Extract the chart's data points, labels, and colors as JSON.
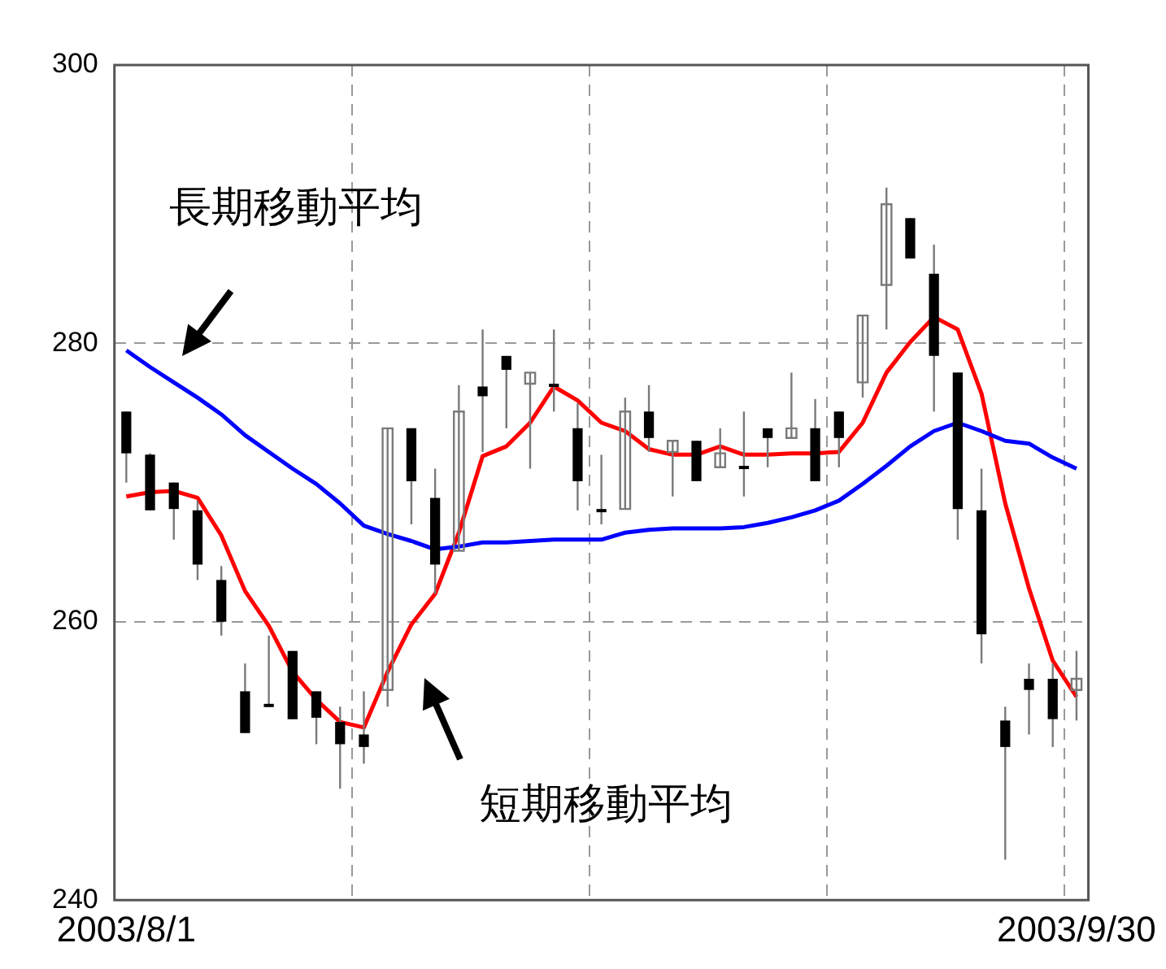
{
  "chart_data": {
    "type": "candlestick",
    "categories": [
      "2003/8/1",
      null,
      null,
      null,
      null,
      null,
      null,
      null,
      null,
      null,
      null,
      null,
      null,
      null,
      null,
      null,
      null,
      null,
      null,
      null,
      null,
      null,
      null,
      null,
      null,
      null,
      null,
      null,
      null,
      null,
      null,
      null,
      null,
      null,
      null,
      null,
      null,
      null,
      null,
      null,
      "2003/9/30"
    ],
    "ohlc": [
      [
        275.1,
        275.1,
        270.0,
        272.1
      ],
      [
        272.0,
        272.1,
        268.0,
        268.0
      ],
      [
        270.0,
        270.0,
        265.9,
        268.1
      ],
      [
        268.0,
        268.7,
        263.0,
        264.1
      ],
      [
        263.0,
        264.0,
        259.0,
        260.0
      ],
      [
        255.0,
        257.0,
        252.0,
        252.0
      ],
      [
        254.1,
        259.0,
        253.9,
        253.9
      ],
      [
        257.9,
        257.9,
        253.0,
        253.0
      ],
      [
        255.0,
        255.0,
        251.2,
        253.1
      ],
      [
        252.8,
        253.9,
        248.0,
        251.2
      ],
      [
        251.9,
        255.0,
        249.8,
        251.0
      ],
      [
        255.1,
        273.9,
        253.9,
        273.9
      ],
      [
        273.9,
        273.9,
        267.0,
        270.1
      ],
      [
        268.9,
        271.0,
        262.0,
        264.1
      ],
      [
        265.1,
        277.0,
        265.1,
        275.1
      ],
      [
        276.9,
        281.0,
        272.2,
        276.2
      ],
      [
        279.1,
        279.1,
        273.9,
        278.1
      ],
      [
        277.1,
        277.9,
        271.0,
        277.9
      ],
      [
        277.1,
        281.0,
        275.1,
        277.0
      ],
      [
        273.9,
        275.7,
        268.0,
        270.1
      ],
      [
        268.1,
        272.0,
        267.0,
        268.0
      ],
      [
        268.1,
        276.1,
        268.1,
        275.1
      ],
      [
        275.1,
        277.0,
        272.2,
        273.2
      ],
      [
        272.2,
        273.0,
        269.0,
        273.0
      ],
      [
        273.0,
        273.0,
        270.1,
        270.1
      ],
      [
        271.1,
        273.9,
        271.1,
        272.1
      ],
      [
        271.2,
        275.1,
        269.0,
        271.1
      ],
      [
        273.9,
        273.9,
        271.1,
        273.2
      ],
      [
        273.2,
        277.9,
        273.2,
        273.9
      ],
      [
        273.9,
        276.0,
        270.1,
        270.1
      ],
      [
        275.1,
        275.1,
        271.1,
        273.2
      ],
      [
        277.2,
        282.0,
        276.1,
        282.0
      ],
      [
        284.2,
        291.2,
        281.0,
        290.0
      ],
      [
        289.0,
        289.0,
        286.1,
        286.1
      ],
      [
        285.0,
        287.1,
        275.1,
        279.1
      ],
      [
        277.9,
        277.9,
        265.9,
        268.1
      ],
      [
        268.0,
        271.0,
        257.0,
        259.1
      ],
      [
        252.9,
        253.9,
        242.9,
        251.0
      ],
      [
        255.9,
        257.0,
        251.9,
        255.1
      ],
      [
        255.9,
        257.0,
        251.0,
        253.0
      ],
      [
        255.1,
        257.9,
        252.9,
        255.9
      ]
    ],
    "series": [
      {
        "type": "line",
        "name": "長期移動平均",
        "color": "#0000ff",
        "values": [
          279.5,
          278.3,
          277.2,
          276.1,
          274.9,
          273.4,
          272.2,
          271.0,
          269.9,
          268.5,
          266.9,
          266.3,
          265.8,
          265.2,
          265.4,
          265.7,
          265.7,
          265.8,
          265.9,
          265.9,
          265.9,
          266.4,
          266.6,
          266.7,
          266.7,
          266.7,
          266.8,
          267.1,
          267.5,
          268.0,
          268.7,
          269.9,
          271.2,
          272.6,
          273.7,
          274.3,
          273.7,
          273.0,
          272.8,
          271.8,
          271.0
        ]
      },
      {
        "type": "line",
        "name": "短期移動平均",
        "color": "#ff0000",
        "values": [
          269.0,
          269.3,
          269.4,
          268.9,
          266.2,
          262.2,
          259.7,
          256.4,
          254.4,
          252.8,
          252.4,
          256.4,
          259.8,
          262.0,
          266.4,
          271.9,
          272.6,
          274.3,
          276.9,
          275.9,
          274.3,
          273.7,
          272.4,
          272.0,
          272.0,
          272.6,
          272.0,
          272.0,
          272.1,
          272.1,
          272.2,
          274.3,
          277.9,
          280.1,
          281.9,
          281.0,
          276.4,
          268.5,
          262.4,
          257.2,
          254.6
        ]
      }
    ],
    "ylim": [
      240,
      300
    ],
    "yticks": [
      240,
      260,
      280,
      300
    ],
    "grid": true,
    "legend": false
  }
}
